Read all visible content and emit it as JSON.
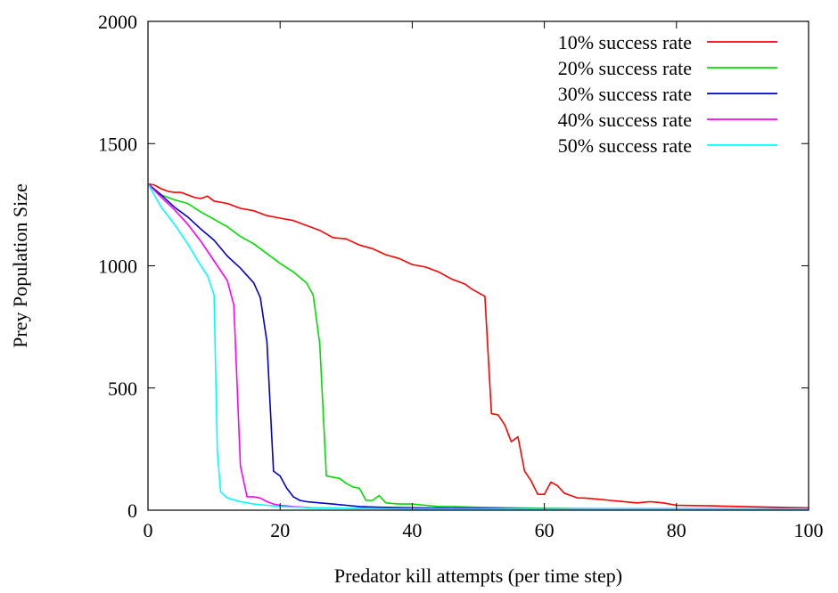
{
  "chart_data": {
    "type": "line",
    "title": "",
    "xlabel": "Predator kill attempts (per time step)",
    "ylabel": "Prey Population Size",
    "xlim": [
      0,
      100
    ],
    "ylim": [
      0,
      2000
    ],
    "xticks": [
      0,
      20,
      40,
      60,
      80,
      100
    ],
    "yticks": [
      0,
      500,
      1000,
      1500,
      2000
    ],
    "grid": false,
    "legend": "top-right",
    "series": [
      {
        "name": "10% success rate",
        "color": "#ff0000",
        "x": [
          0,
          1,
          2,
          3,
          4,
          5,
          6,
          7,
          8,
          9,
          10,
          12,
          14,
          16,
          18,
          20,
          22,
          24,
          26,
          28,
          30,
          32,
          34,
          36,
          38,
          40,
          42,
          44,
          46,
          47,
          48,
          49,
          50,
          51,
          52,
          53,
          54,
          55,
          56,
          57,
          58,
          59,
          60,
          61,
          62,
          63,
          64,
          65,
          66,
          68,
          70,
          72,
          74,
          76,
          78,
          80,
          85,
          90,
          95,
          100
        ],
        "y": [
          1335,
          1330,
          1315,
          1305,
          1300,
          1300,
          1290,
          1280,
          1275,
          1285,
          1265,
          1255,
          1235,
          1225,
          1205,
          1195,
          1185,
          1165,
          1145,
          1115,
          1110,
          1085,
          1070,
          1045,
          1030,
          1005,
          995,
          975,
          945,
          935,
          925,
          905,
          890,
          875,
          395,
          390,
          350,
          280,
          300,
          160,
          120,
          65,
          65,
          115,
          100,
          70,
          60,
          50,
          50,
          45,
          40,
          35,
          30,
          35,
          30,
          20,
          18,
          15,
          12,
          10
        ]
      },
      {
        "name": "20% success rate",
        "color": "#00dd00",
        "x": [
          0,
          2,
          4,
          6,
          8,
          10,
          12,
          14,
          16,
          18,
          20,
          22,
          24,
          25,
          26,
          27,
          28,
          29,
          30,
          31,
          32,
          33,
          34,
          35,
          36,
          38,
          40,
          42,
          44,
          46,
          50,
          55,
          60,
          70,
          80,
          90,
          100
        ],
        "y": [
          1335,
          1290,
          1270,
          1255,
          1220,
          1190,
          1160,
          1120,
          1090,
          1050,
          1010,
          975,
          930,
          880,
          680,
          140,
          135,
          130,
          110,
          95,
          90,
          40,
          40,
          60,
          30,
          25,
          25,
          20,
          15,
          15,
          12,
          10,
          8,
          6,
          5,
          5,
          5
        ]
      },
      {
        "name": "30% success rate",
        "color": "#0000cc",
        "x": [
          0,
          2,
          4,
          6,
          8,
          10,
          12,
          14,
          16,
          17,
          18,
          19,
          20,
          21,
          22,
          23,
          24,
          26,
          28,
          30,
          32,
          35,
          40,
          50,
          60,
          80,
          100
        ],
        "y": [
          1335,
          1290,
          1240,
          1200,
          1150,
          1105,
          1040,
          990,
          930,
          870,
          690,
          160,
          140,
          90,
          55,
          40,
          35,
          30,
          25,
          20,
          15,
          12,
          10,
          8,
          5,
          5,
          5
        ]
      },
      {
        "name": "40% success rate",
        "color": "#ff00ff",
        "x": [
          0,
          2,
          4,
          6,
          8,
          10,
          11,
          12,
          13,
          14,
          15,
          16,
          17,
          18,
          19,
          20,
          22,
          25,
          30,
          40,
          60,
          100
        ],
        "y": [
          1335,
          1280,
          1230,
          1170,
          1100,
          1020,
          980,
          940,
          840,
          180,
          55,
          55,
          50,
          35,
          25,
          20,
          15,
          10,
          8,
          5,
          5,
          5
        ]
      },
      {
        "name": "50% success rate",
        "color": "#00ffff",
        "x": [
          0,
          2,
          4,
          6,
          8,
          9,
          10,
          10.5,
          11,
          12,
          14,
          16,
          18,
          20,
          25,
          30,
          40,
          60,
          100
        ],
        "y": [
          1335,
          1240,
          1170,
          1090,
          1000,
          960,
          880,
          240,
          75,
          50,
          35,
          25,
          20,
          15,
          10,
          8,
          5,
          5,
          5
        ]
      }
    ]
  }
}
